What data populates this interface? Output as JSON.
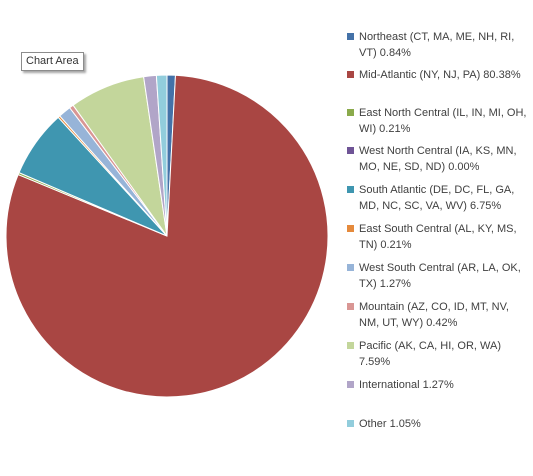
{
  "tooltip": "Chart Area",
  "chart_data": {
    "type": "pie",
    "legend_position": "right",
    "slices": [
      {
        "label": "Northeast (CT, MA, ME, NH, RI, VT) 0.84%",
        "value": 0.84,
        "color": "#4472a8"
      },
      {
        "label": "Mid-Atlantic (NY, NJ, PA) 80.38%",
        "value": 80.38,
        "color": "#a94643"
      },
      {
        "label": "East North Central (IL, IN, MI, OH, WI) 0.21%",
        "value": 0.21,
        "color": "#8aaa4b"
      },
      {
        "label": "West North Central (IA, KS, MN, MO, NE, SD, ND) 0.00%",
        "value": 0.0,
        "color": "#6f5496"
      },
      {
        "label": "South Atlantic  (DE, DC, FL, GA, MD, NC, SC, VA, WV) 6.75%",
        "value": 6.75,
        "color": "#3f96b0"
      },
      {
        "label": "East South Central (AL, KY, MS, TN) 0.21%",
        "value": 0.21,
        "color": "#e58a3c"
      },
      {
        "label": "West South Central (AR, LA, OK, TX) 1.27%",
        "value": 1.27,
        "color": "#97b4d8"
      },
      {
        "label": "Mountain (AZ, CO, ID, MT, NV, NM, UT, WY) 0.42%",
        "value": 0.42,
        "color": "#d99694"
      },
      {
        "label": "Pacific (AK, CA, HI, OR, WA) 7.59%",
        "value": 7.59,
        "color": "#c3d69b"
      },
      {
        "label": "International 1.27%",
        "value": 1.27,
        "color": "#b1a5c8"
      },
      {
        "label": "Other 1.05%",
        "value": 1.05,
        "color": "#92cddc"
      }
    ]
  }
}
